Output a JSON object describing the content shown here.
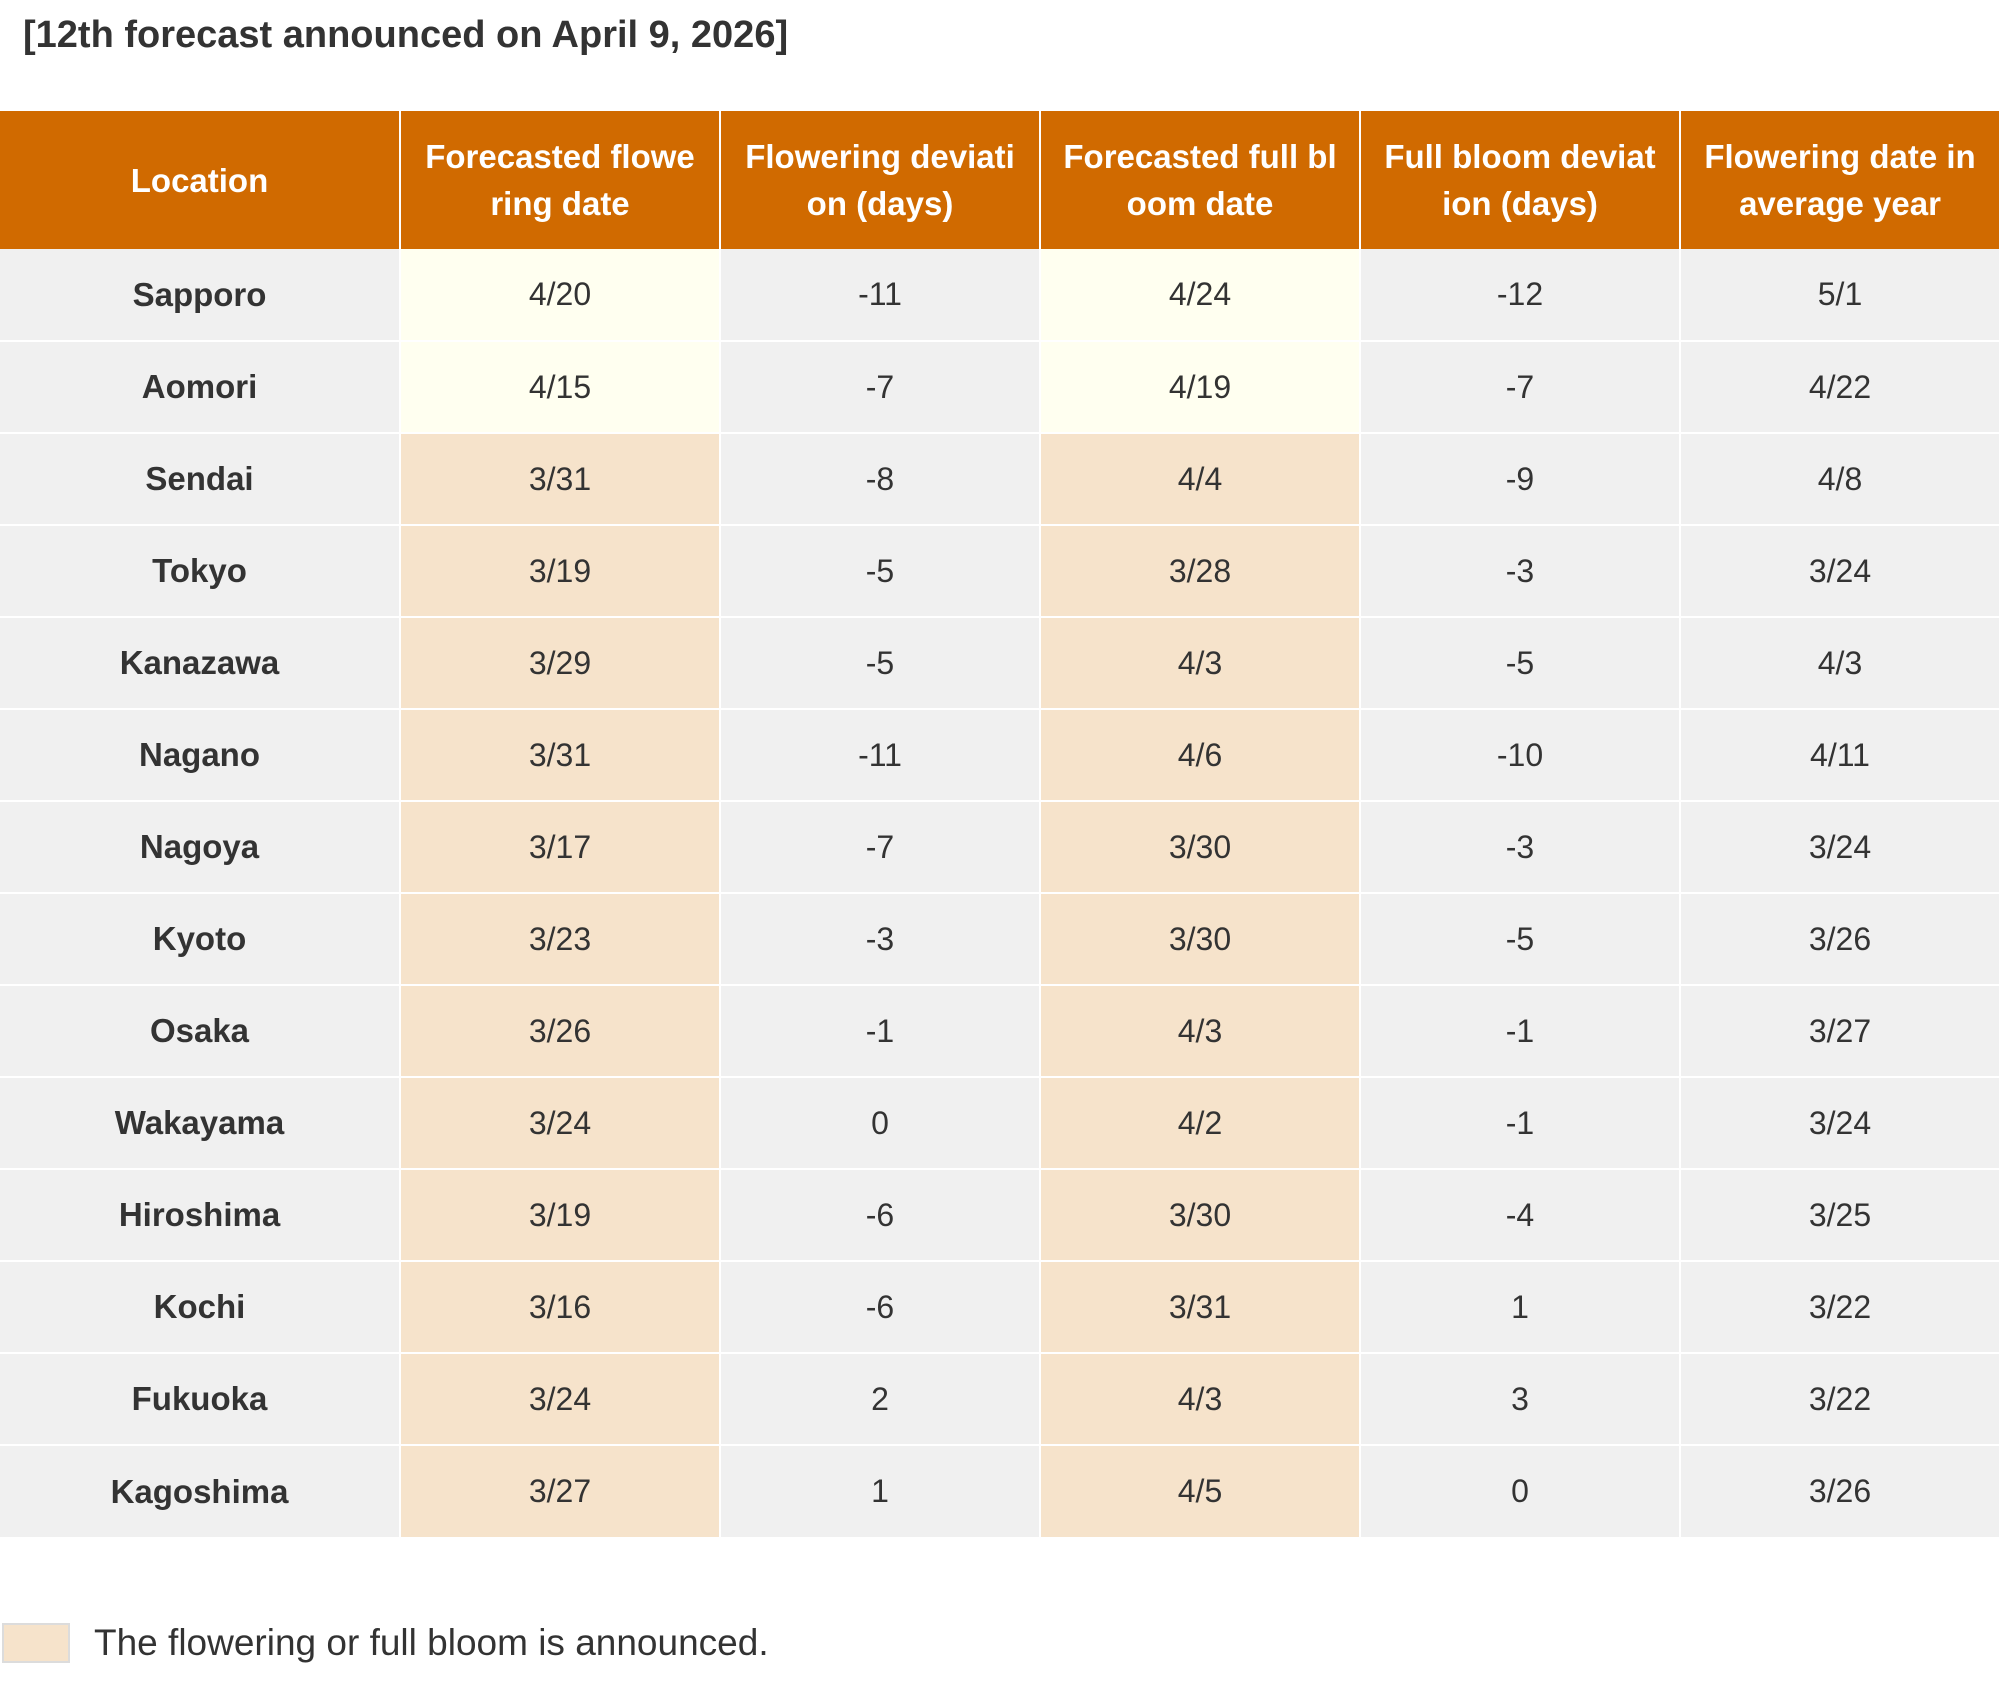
{
  "title": "[12th forecast announced on April 9, 2026]",
  "colors": {
    "header_bg": "#d06a00",
    "header_text": "#ffffff",
    "cell_bg": "#f0f0f0",
    "announced_bg": "#f6e3cb",
    "forecast_bg": "#fffff0"
  },
  "table": {
    "headers": [
      "Location",
      "Forecasted flowering date",
      "Flowering deviation (days)",
      "Forecasted full bloom date",
      "Full bloom deviation (days)",
      "Flowering date in average year"
    ],
    "rows": [
      {
        "location": "Sapporo",
        "flowering": "4/20",
        "flowering_dev": "-11",
        "full_bloom": "4/24",
        "full_bloom_dev": "-12",
        "average": "5/1",
        "announced": false
      },
      {
        "location": "Aomori",
        "flowering": "4/15",
        "flowering_dev": "-7",
        "full_bloom": "4/19",
        "full_bloom_dev": "-7",
        "average": "4/22",
        "announced": false
      },
      {
        "location": "Sendai",
        "flowering": "3/31",
        "flowering_dev": "-8",
        "full_bloom": "4/4",
        "full_bloom_dev": "-9",
        "average": "4/8",
        "announced": true
      },
      {
        "location": "Tokyo",
        "flowering": "3/19",
        "flowering_dev": "-5",
        "full_bloom": "3/28",
        "full_bloom_dev": "-3",
        "average": "3/24",
        "announced": true
      },
      {
        "location": "Kanazawa",
        "flowering": "3/29",
        "flowering_dev": "-5",
        "full_bloom": "4/3",
        "full_bloom_dev": "-5",
        "average": "4/3",
        "announced": true
      },
      {
        "location": "Nagano",
        "flowering": "3/31",
        "flowering_dev": "-11",
        "full_bloom": "4/6",
        "full_bloom_dev": "-10",
        "average": "4/11",
        "announced": true
      },
      {
        "location": "Nagoya",
        "flowering": "3/17",
        "flowering_dev": "-7",
        "full_bloom": "3/30",
        "full_bloom_dev": "-3",
        "average": "3/24",
        "announced": true
      },
      {
        "location": "Kyoto",
        "flowering": "3/23",
        "flowering_dev": "-3",
        "full_bloom": "3/30",
        "full_bloom_dev": "-5",
        "average": "3/26",
        "announced": true
      },
      {
        "location": "Osaka",
        "flowering": "3/26",
        "flowering_dev": "-1",
        "full_bloom": "4/3",
        "full_bloom_dev": "-1",
        "average": "3/27",
        "announced": true
      },
      {
        "location": "Wakayama",
        "flowering": "3/24",
        "flowering_dev": "0",
        "full_bloom": "4/2",
        "full_bloom_dev": "-1",
        "average": "3/24",
        "announced": true
      },
      {
        "location": "Hiroshima",
        "flowering": "3/19",
        "flowering_dev": "-6",
        "full_bloom": "3/30",
        "full_bloom_dev": "-4",
        "average": "3/25",
        "announced": true
      },
      {
        "location": "Kochi",
        "flowering": "3/16",
        "flowering_dev": "-6",
        "full_bloom": "3/31",
        "full_bloom_dev": "1",
        "average": "3/22",
        "announced": true
      },
      {
        "location": "Fukuoka",
        "flowering": "3/24",
        "flowering_dev": "2",
        "full_bloom": "4/3",
        "full_bloom_dev": "3",
        "average": "3/22",
        "announced": true
      },
      {
        "location": "Kagoshima",
        "flowering": "3/27",
        "flowering_dev": "1",
        "full_bloom": "4/5",
        "full_bloom_dev": "0",
        "average": "3/26",
        "announced": true
      }
    ]
  },
  "legend": {
    "text": "The flowering or full bloom is announced."
  }
}
